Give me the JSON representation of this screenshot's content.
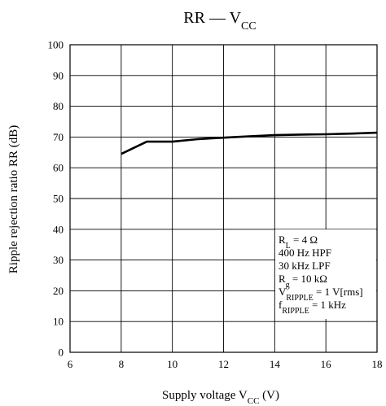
{
  "chart_data": {
    "type": "line",
    "title": {
      "main": "RR — V",
      "sub": "CC"
    },
    "xlabel": {
      "pre": "Supply voltage  V",
      "sub": "CC",
      "post": "  (V)"
    },
    "ylabel": "Ripple rejection ratio  RR  (dB)",
    "xlim": [
      6,
      18
    ],
    "ylim": [
      0,
      100
    ],
    "xticks": [
      "6",
      "8",
      "10",
      "12",
      "14",
      "16",
      "18"
    ],
    "yticks": [
      "0",
      "10",
      "20",
      "30",
      "40",
      "50",
      "60",
      "70",
      "80",
      "90",
      "100"
    ],
    "grid": true,
    "series": [
      {
        "x": [
          8,
          9,
          10,
          11,
          12,
          13,
          14,
          15,
          16,
          17,
          18
        ],
        "y": [
          64.5,
          68.5,
          68.5,
          69.3,
          69.8,
          70.2,
          70.6,
          70.8,
          70.9,
          71.1,
          71.4
        ],
        "color": "#000000"
      }
    ],
    "conditions": [
      {
        "pre": "R",
        "sub": "L",
        "post": " = 4 Ω"
      },
      {
        "pre": "400 Hz HPF",
        "sub": "",
        "post": ""
      },
      {
        "pre": "30 kHz LPF",
        "sub": "",
        "post": ""
      },
      {
        "pre": "R",
        "sub": "g",
        "post": " = 10 kΩ"
      },
      {
        "pre": "V",
        "sub": "RIPPLE",
        "post": " = 1 V[rms]"
      },
      {
        "pre": "f",
        "sub": "RIPPLE",
        "post": " = 1 kHz"
      }
    ]
  }
}
